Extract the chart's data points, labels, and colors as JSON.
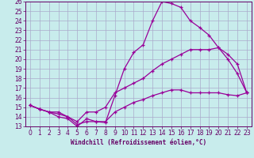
{
  "xlabel": "Windchill (Refroidissement éolien,°C)",
  "background_color": "#c8ecec",
  "line_color": "#990099",
  "grid_color": "#aaaacc",
  "text_color": "#660066",
  "xlim": [
    -0.5,
    23.5
  ],
  "ylim": [
    13,
    26
  ],
  "xticks": [
    0,
    1,
    2,
    3,
    4,
    5,
    6,
    7,
    8,
    9,
    10,
    11,
    12,
    13,
    14,
    15,
    16,
    17,
    18,
    19,
    20,
    21,
    22,
    23
  ],
  "yticks": [
    13,
    14,
    15,
    16,
    17,
    18,
    19,
    20,
    21,
    22,
    23,
    24,
    25,
    26
  ],
  "line1_x": [
    0,
    1,
    2,
    3,
    4,
    5,
    6,
    7,
    8,
    9,
    10,
    11,
    12,
    13,
    14,
    15,
    16,
    17,
    18,
    19,
    20,
    21,
    22,
    23
  ],
  "line1_y": [
    15.2,
    14.8,
    14.5,
    14.0,
    13.8,
    13.0,
    13.8,
    13.5,
    13.4,
    16.2,
    19.0,
    20.7,
    21.5,
    24.0,
    26.0,
    25.8,
    25.4,
    24.0,
    23.3,
    22.5,
    21.2,
    20.0,
    18.5,
    16.5
  ],
  "line2_x": [
    0,
    1,
    2,
    3,
    4,
    5,
    6,
    7,
    8,
    9,
    10,
    11,
    12,
    13,
    14,
    15,
    16,
    17,
    18,
    19,
    20,
    21,
    22,
    23
  ],
  "line2_y": [
    15.2,
    14.8,
    14.5,
    14.5,
    14.0,
    13.5,
    14.5,
    14.5,
    15.0,
    16.5,
    17.0,
    17.5,
    18.0,
    18.8,
    19.5,
    20.0,
    20.5,
    21.0,
    21.0,
    21.0,
    21.2,
    20.5,
    19.5,
    16.5
  ],
  "line3_x": [
    0,
    1,
    2,
    3,
    4,
    5,
    6,
    7,
    8,
    9,
    10,
    11,
    12,
    13,
    14,
    15,
    16,
    17,
    18,
    19,
    20,
    21,
    22,
    23
  ],
  "line3_y": [
    15.2,
    14.8,
    14.5,
    14.3,
    14.0,
    13.2,
    13.5,
    13.5,
    13.5,
    14.5,
    15.0,
    15.5,
    15.8,
    16.2,
    16.5,
    16.8,
    16.8,
    16.5,
    16.5,
    16.5,
    16.5,
    16.3,
    16.2,
    16.5
  ],
  "xlabel_fontsize": 5.5,
  "tick_labelsize": 5.5,
  "linewidth": 0.9,
  "markersize": 3.5,
  "markeredgewidth": 0.9
}
